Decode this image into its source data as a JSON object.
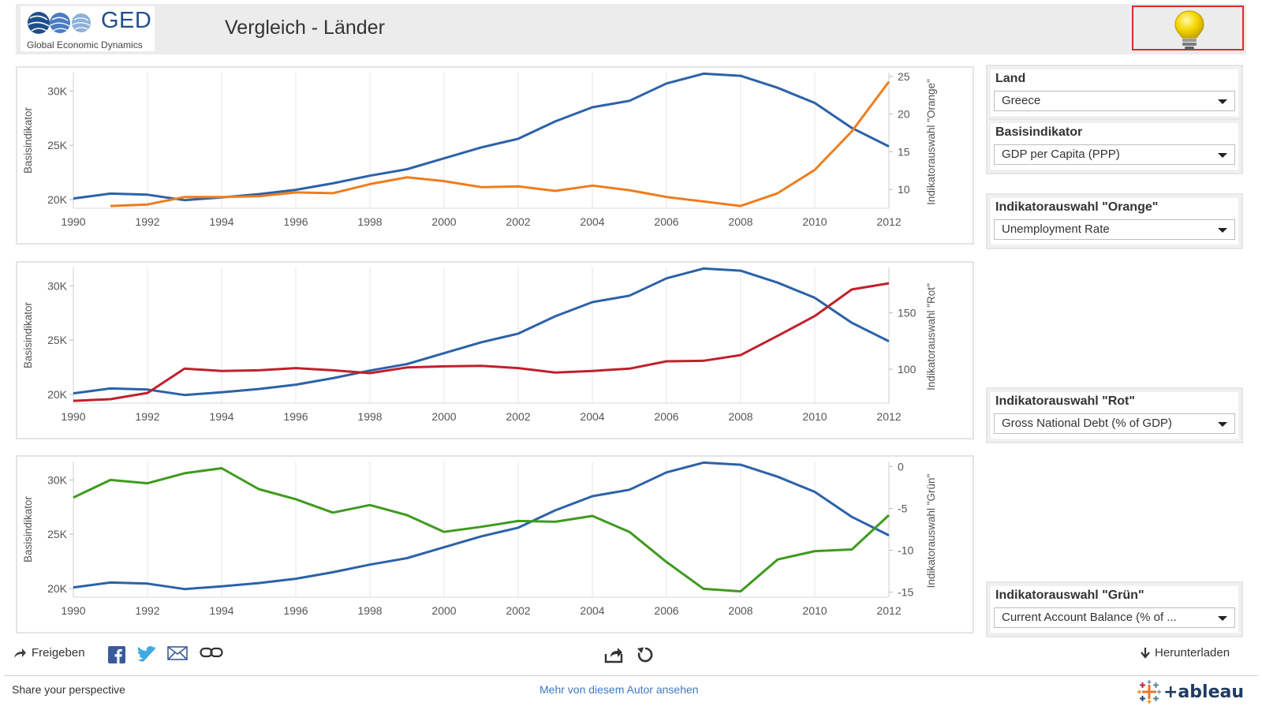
{
  "header": {
    "logo_text": "GED",
    "logo_subtitle": "Global Economic Dynamics",
    "title": "Vergleich - Länder",
    "hint_icon": "lightbulb-icon"
  },
  "colors": {
    "base": "#2c62a8",
    "orange": "#ee7d1e",
    "red": "#c0212b",
    "green": "#3f9a1f",
    "grid": "#e6e6e6",
    "axis_text": "#555555",
    "bulb": "#f5d800"
  },
  "controls": {
    "land": {
      "label": "Land",
      "value": "Greece"
    },
    "basisindikator": {
      "label": "Basisindikator",
      "value": "GDP per Capita (PPP)"
    },
    "orange": {
      "label": "Indikatorauswahl \"Orange\"",
      "value": "Unemployment Rate"
    },
    "rot": {
      "label": "Indikatorauswahl \"Rot\"",
      "value": "Gross National Debt (% of GDP)"
    },
    "gruen": {
      "label": "Indikatorauswahl \"Grün\"",
      "value": "Current Account Balance (% of ..."
    }
  },
  "toolbar": {
    "share_label": "Freigeben",
    "download_label": "Herunterladen",
    "share_perspective": "Share your perspective",
    "more_link": "Mehr von diesem Autor ansehen",
    "tableau_label": "+ableau"
  },
  "chart_data": [
    {
      "type": "line",
      "ylabel_left": "Basisindikator",
      "ylabel_right": "Indikatorauswahl \"Orange\"",
      "x_ticks": [
        "1990",
        "1992",
        "1994",
        "1996",
        "1998",
        "2000",
        "2002",
        "2004",
        "2006",
        "2008",
        "2010",
        "2012"
      ],
      "x": [
        1990,
        1991,
        1992,
        1993,
        1994,
        1995,
        1996,
        1997,
        1998,
        1999,
        2000,
        2001,
        2002,
        2003,
        2004,
        2005,
        2006,
        2007,
        2008,
        2009,
        2010,
        2011,
        2012
      ],
      "left_ticks": [
        "20K",
        "25K",
        "30K"
      ],
      "left_tick_values": [
        20000,
        25000,
        30000
      ],
      "left_ylim": [
        19200,
        31700
      ],
      "right_ticks": [
        "10",
        "15",
        "20",
        "25"
      ],
      "right_tick_values": [
        10,
        15,
        20,
        25
      ],
      "right_ylim": [
        7.5,
        25.5
      ],
      "series": [
        {
          "name": "Basisindikator",
          "axis": "left",
          "color_key": "base",
          "values": [
            20100,
            20550,
            20450,
            19950,
            20200,
            20500,
            20900,
            21500,
            22200,
            22800,
            23800,
            24800,
            25600,
            27200,
            28500,
            29100,
            30700,
            31600,
            31400,
            30300,
            28900,
            26600,
            24900
          ]
        },
        {
          "name": "Orange",
          "axis": "right",
          "color_key": "orange",
          "values": [
            null,
            7.8,
            8.0,
            9.0,
            9.0,
            9.1,
            9.6,
            9.5,
            10.7,
            11.6,
            11.1,
            10.3,
            10.4,
            9.8,
            10.5,
            9.9,
            9.0,
            8.4,
            7.8,
            9.5,
            12.6,
            17.7,
            24.3
          ]
        }
      ]
    },
    {
      "type": "line",
      "ylabel_left": "Basisindikator",
      "ylabel_right": "Indikatorauswahl \"Rot\"",
      "x_ticks": [
        "1990",
        "1992",
        "1994",
        "1996",
        "1998",
        "2000",
        "2002",
        "2004",
        "2006",
        "2008",
        "2010",
        "2012"
      ],
      "x": [
        1990,
        1991,
        1992,
        1993,
        1994,
        1995,
        1996,
        1997,
        1998,
        1999,
        2000,
        2001,
        2002,
        2003,
        2004,
        2005,
        2006,
        2007,
        2008,
        2009,
        2010,
        2011,
        2012
      ],
      "left_ticks": [
        "20K",
        "25K",
        "30K"
      ],
      "left_tick_values": [
        20000,
        25000,
        30000
      ],
      "left_ylim": [
        19200,
        31700
      ],
      "right_ticks": [
        "100",
        "150"
      ],
      "right_tick_values": [
        100,
        150
      ],
      "right_ylim": [
        70,
        190
      ],
      "series": [
        {
          "name": "Basisindikator",
          "axis": "left",
          "color_key": "base",
          "values": [
            20100,
            20550,
            20450,
            19950,
            20200,
            20500,
            20900,
            21500,
            22200,
            22800,
            23800,
            24800,
            25600,
            27200,
            28500,
            29100,
            30700,
            31600,
            31400,
            30300,
            28900,
            26600,
            24900
          ]
        },
        {
          "name": "Rot",
          "axis": "right",
          "color_key": "red",
          "values": [
            72.0,
            73.5,
            79.0,
            100.5,
            98.5,
            99.0,
            101.0,
            99.0,
            96.5,
            101.5,
            102.5,
            103.0,
            101.0,
            97.0,
            98.5,
            100.5,
            107.0,
            107.5,
            112.5,
            129.5,
            147.0,
            170.5,
            176.0
          ]
        }
      ]
    },
    {
      "type": "line",
      "ylabel_left": "Basisindikator",
      "ylabel_right": "Indikatorauswahl \"Grün\"",
      "x_ticks": [
        "1990",
        "1992",
        "1994",
        "1996",
        "1998",
        "2000",
        "2002",
        "2004",
        "2006",
        "2008",
        "2010",
        "2012"
      ],
      "x": [
        1990,
        1991,
        1992,
        1993,
        1994,
        1995,
        1996,
        1997,
        1998,
        1999,
        2000,
        2001,
        2002,
        2003,
        2004,
        2005,
        2006,
        2007,
        2008,
        2009,
        2010,
        2011,
        2012
      ],
      "left_ticks": [
        "20K",
        "25K",
        "30K"
      ],
      "left_tick_values": [
        20000,
        25000,
        30000
      ],
      "left_ylim": [
        19200,
        31700
      ],
      "right_ticks": [
        "0",
        "-5",
        "-10",
        "-15"
      ],
      "right_tick_values": [
        0,
        -5,
        -10,
        -15
      ],
      "right_ylim": [
        -15.6,
        0.6
      ],
      "series": [
        {
          "name": "Basisindikator",
          "axis": "left",
          "color_key": "base",
          "values": [
            20100,
            20550,
            20450,
            19950,
            20200,
            20500,
            20900,
            21500,
            22200,
            22800,
            23800,
            24800,
            25600,
            27200,
            28500,
            29100,
            30700,
            31600,
            31400,
            30300,
            28900,
            26600,
            24900
          ]
        },
        {
          "name": "Grün",
          "axis": "right",
          "color_key": "green",
          "values": [
            -3.7,
            -1.6,
            -2.0,
            -0.8,
            -0.2,
            -2.7,
            -3.9,
            -5.5,
            -4.6,
            -5.8,
            -7.8,
            -7.2,
            -6.5,
            -6.6,
            -5.9,
            -7.8,
            -11.4,
            -14.6,
            -14.9,
            -11.1,
            -10.1,
            -9.9,
            -5.8
          ]
        }
      ]
    }
  ]
}
